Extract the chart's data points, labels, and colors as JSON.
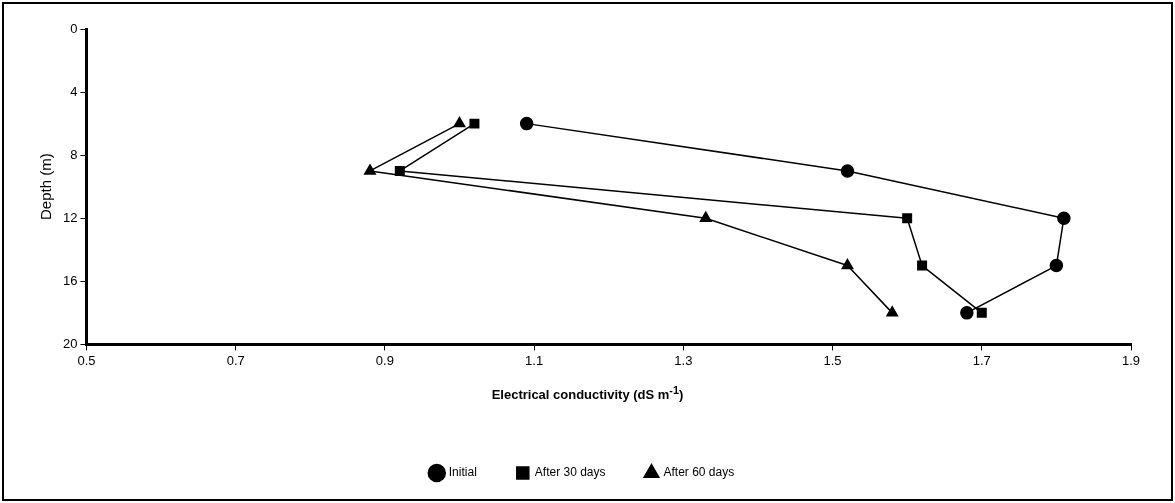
{
  "chart_data": {
    "type": "line",
    "xlabel": "Electrical conductivity (dS m$^{-1}$)",
    "ylabel": "Depth (m)",
    "xlim": [
      0.5,
      1.9
    ],
    "xticks": [
      0.5,
      0.7,
      0.9,
      1.1,
      1.3,
      1.5,
      1.7,
      1.9
    ],
    "ylim": [
      20,
      0
    ],
    "yticks": [
      0,
      4,
      8,
      12,
      16,
      20
    ],
    "grid": false,
    "legend": "bottom",
    "series": [
      {
        "name": "Initial",
        "color": "#000000",
        "marker": "circle",
        "x": [
          1.09,
          1.52,
          1.81,
          1.8,
          1.68
        ],
        "values": [
          6,
          9,
          12,
          15,
          18
        ]
      },
      {
        "name": "After 30 days",
        "color": "#000000",
        "marker": "square",
        "x": [
          1.02,
          0.92,
          1.6,
          1.62,
          1.7
        ],
        "values": [
          6,
          9,
          12,
          15,
          18
        ]
      },
      {
        "name": "After 60 days",
        "color": "#000000",
        "marker": "triangle",
        "x": [
          1.0,
          0.88,
          1.33,
          1.52,
          1.58
        ],
        "values": [
          6,
          9,
          12,
          15,
          18
        ]
      }
    ]
  }
}
